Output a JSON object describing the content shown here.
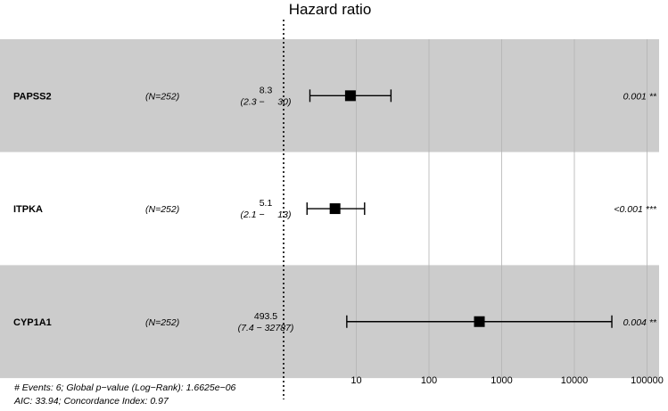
{
  "chart_data": {
    "type": "forest",
    "title": "Hazard ratio",
    "x_scale": "log10",
    "reference_line": 1,
    "x_ticks": [
      10,
      100,
      1000,
      10000,
      100000
    ],
    "x_tick_labels": [
      "10",
      "100",
      "1000",
      "10000",
      "100000"
    ],
    "rows": [
      {
        "variable": "PAPSS2",
        "n_label": "(N=252)",
        "hr_label": "8.3",
        "ci_label": "(2.3 −     30)",
        "hr": 8.3,
        "ci_low": 2.3,
        "ci_high": 30,
        "p_label": "0.001 **"
      },
      {
        "variable": "ITPKA",
        "n_label": "(N=252)",
        "hr_label": "5.1",
        "ci_label": "(2.1 −     13)",
        "hr": 5.1,
        "ci_low": 2.1,
        "ci_high": 13,
        "p_label": "<0.001 ***"
      },
      {
        "variable": "CYP1A1",
        "n_label": "(N=252)",
        "hr_label": "493.5",
        "ci_label": "(7.4 − 32787)",
        "hr": 493.5,
        "ci_low": 7.4,
        "ci_high": 32787,
        "p_label": "0.004 **"
      }
    ],
    "footer_lines": [
      "# Events: 6; Global p−value (Log−Rank): 1.6625e−06",
      "AIC: 33.94; Concordance Index: 0.97"
    ],
    "grid": true
  },
  "colors": {
    "band_shaded": "#cccccc",
    "band_plain": "#ffffff",
    "gridline": "#b3b3b3",
    "marker": "#000000",
    "text": "#000000"
  }
}
